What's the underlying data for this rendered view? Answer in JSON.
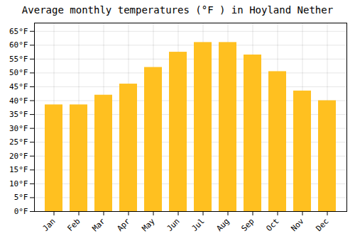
{
  "chart_data": {
    "type": "bar",
    "title": "Average monthly temperatures (°F ) in Hoyland Nether",
    "categories": [
      "Jan",
      "Feb",
      "Mar",
      "Apr",
      "May",
      "Jun",
      "Jul",
      "Aug",
      "Sep",
      "Oct",
      "Nov",
      "Dec"
    ],
    "values": [
      38.5,
      38.5,
      42,
      46,
      52,
      57.5,
      61,
      61,
      56.5,
      50.5,
      43.5,
      40
    ],
    "color": "#FFC020",
    "ylim": [
      0,
      68
    ],
    "yticks": [
      {
        "value": 0,
        "label": "0°F"
      },
      {
        "value": 5,
        "label": "5°F"
      },
      {
        "value": 10,
        "label": "10°F"
      },
      {
        "value": 15,
        "label": "15°F"
      },
      {
        "value": 20,
        "label": "20°F"
      },
      {
        "value": 25,
        "label": "25°F"
      },
      {
        "value": 30,
        "label": "30°F"
      },
      {
        "value": 35,
        "label": "35°F"
      },
      {
        "value": 40,
        "label": "40°F"
      },
      {
        "value": 45,
        "label": "45°F"
      },
      {
        "value": 50,
        "label": "50°F"
      },
      {
        "value": 55,
        "label": "55°F"
      },
      {
        "value": 60,
        "label": "60°F"
      },
      {
        "value": 65,
        "label": "65°F"
      }
    ],
    "grid": true
  }
}
